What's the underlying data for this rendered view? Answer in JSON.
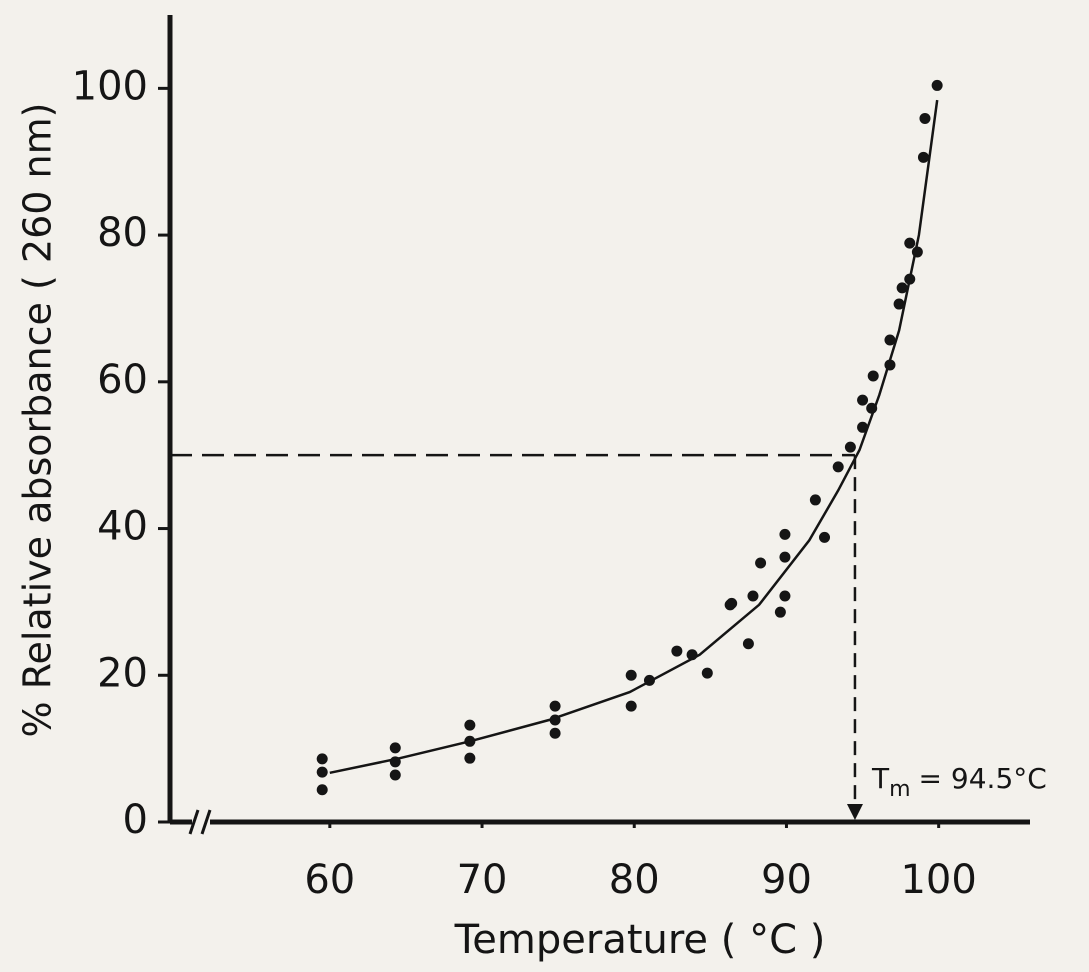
{
  "chart_data": {
    "type": "scatter",
    "y_label": "% Relative absorbance ( 260 nm)",
    "x_label": "Temperature ( °C )",
    "xlim": [
      49.5,
      106
    ],
    "ylim": [
      0,
      110
    ],
    "xticks": [
      60,
      70,
      80,
      90,
      100
    ],
    "yticks": [
      0,
      20,
      40,
      60,
      80,
      100
    ],
    "color": "#151515",
    "x": [
      59.5,
      59.5,
      59.5,
      64.3,
      64.3,
      64.3,
      69.2,
      69.2,
      69.2,
      74.8,
      74.8,
      74.8,
      79.8,
      79.8,
      81,
      82.8,
      83.8,
      84.8,
      86.3,
      86.4,
      87.5,
      87.8,
      88.3,
      89.6,
      89.9,
      89.9,
      89.9,
      91.9,
      92.5,
      93.4,
      94.2,
      95,
      95,
      95.6,
      95.7,
      96.8,
      96.8,
      97.4,
      97.6,
      98.1,
      98.1,
      98.6,
      99,
      99.1,
      99.9
    ],
    "y": [
      8.6,
      4.4,
      6.8,
      10.1,
      6.4,
      8.2,
      13.2,
      8.7,
      11,
      15.8,
      12.1,
      13.9,
      20,
      15.8,
      19.3,
      23.3,
      22.8,
      20.3,
      29.6,
      29.8,
      24.3,
      30.8,
      35.3,
      28.6,
      30.8,
      39.2,
      36.1,
      43.9,
      38.8,
      48.4,
      51.1,
      57.5,
      53.8,
      56.4,
      60.8,
      62.3,
      65.7,
      70.6,
      72.8,
      74,
      78.9,
      77.7,
      90.6,
      95.9,
      100.4
    ],
    "fit": {
      "x": [
        60,
        64.6,
        69.2,
        74.4,
        79.7,
        84.3,
        88.2,
        91.5,
        93.4,
        94.8,
        96.1,
        97.4,
        98.7,
        99.9
      ],
      "y": [
        6.7,
        8.7,
        11,
        13.9,
        17.7,
        22.8,
        29.6,
        38.4,
        45.2,
        50.7,
        58.2,
        67,
        80,
        98.4
      ]
    },
    "reference": {
      "x": 94.5,
      "y": 50
    },
    "annotation": {
      "symbol": "T",
      "subscript": "m",
      "text": "= 94.5°C"
    }
  }
}
